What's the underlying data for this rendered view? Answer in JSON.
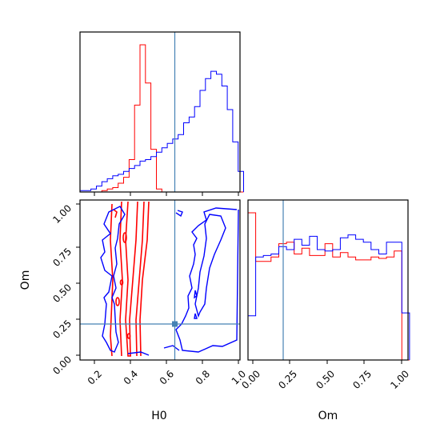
{
  "chart_data": {
    "type": "corner",
    "truths": {
      "H0": 0.65,
      "Om": 0.2
    },
    "truth_color": "#4682b4",
    "series_colors": [
      "#ff0000",
      "#0000ff"
    ],
    "axis_labels": {
      "x_bottom_left": "H0",
      "x_bottom_right": "Om",
      "y_left": "Om"
    },
    "xticks_H0": [
      "0.2",
      "0.4",
      "0.6",
      "0.8",
      "1.0"
    ],
    "xticks_Om": [
      "0.00",
      "0.25",
      "0.50",
      "0.75",
      "1.00"
    ],
    "yticks_Om": [
      "0.00",
      "0.25",
      "0.50",
      "0.75",
      "1.00"
    ],
    "ranges": {
      "H0": [
        0.12,
        1.0
      ],
      "Om": [
        -0.02,
        1.02
      ]
    },
    "hist_H0": {
      "bin_edges": [
        0.12,
        0.15,
        0.18,
        0.21,
        0.24,
        0.27,
        0.3,
        0.33,
        0.36,
        0.39,
        0.42,
        0.45,
        0.48,
        0.51,
        0.54,
        0.57,
        0.6,
        0.63,
        0.66,
        0.69,
        0.72,
        0.75,
        0.78,
        0.81,
        0.84,
        0.87,
        0.9,
        0.93,
        0.96,
        0.99
      ],
      "series": [
        {
          "values": [
            0,
            0,
            0,
            0,
            1,
            2,
            3,
            6,
            10,
            22,
            59,
            100,
            74,
            29,
            2,
            0,
            0,
            0,
            0,
            0,
            0,
            0,
            0,
            0,
            0,
            0,
            0,
            0,
            0,
            0
          ]
        },
        {
          "values": [
            1,
            1,
            2,
            4,
            7,
            9,
            11,
            12,
            14,
            16,
            18,
            21,
            22,
            24,
            27,
            30,
            33,
            36,
            39,
            47,
            51,
            58,
            69,
            77,
            82,
            80,
            72,
            56,
            34,
            14
          ]
        }
      ]
    },
    "hist_Om": {
      "bin_edges": [
        -0.02,
        0.03,
        0.08,
        0.13,
        0.18,
        0.23,
        0.28,
        0.33,
        0.38,
        0.43,
        0.48,
        0.53,
        0.58,
        0.63,
        0.68,
        0.73,
        0.78,
        0.83,
        0.88,
        0.93,
        0.98
      ],
      "series": [
        {
          "values": [
            100,
            67,
            67,
            70,
            79,
            80,
            72,
            76,
            71,
            71,
            79,
            70,
            73,
            70,
            68,
            68,
            70,
            69,
            70,
            74,
            0
          ]
        },
        {
          "values": [
            30,
            70,
            71,
            72,
            77,
            75,
            82,
            78,
            84,
            75,
            74,
            75,
            83,
            85,
            82,
            80,
            75,
            72,
            80,
            80,
            32
          ]
        }
      ]
    },
    "contours_2d": [
      {
        "series": 0,
        "level": "inner",
        "H0_range": [
          0.36,
          0.5
        ],
        "Om_range": [
          0.0,
          1.0
        ]
      },
      {
        "series": 0,
        "level": "outer",
        "H0_range": [
          0.3,
          0.52
        ],
        "Om_range": [
          0.0,
          1.0
        ]
      },
      {
        "series": 1,
        "level": "outer-left",
        "H0_range": [
          0.22,
          0.38
        ],
        "Om_range": [
          0.05,
          0.75
        ]
      },
      {
        "series": 1,
        "level": "outer-right",
        "H0_range": [
          0.58,
          1.0
        ],
        "Om_range": [
          0.0,
          0.95
        ]
      }
    ]
  }
}
